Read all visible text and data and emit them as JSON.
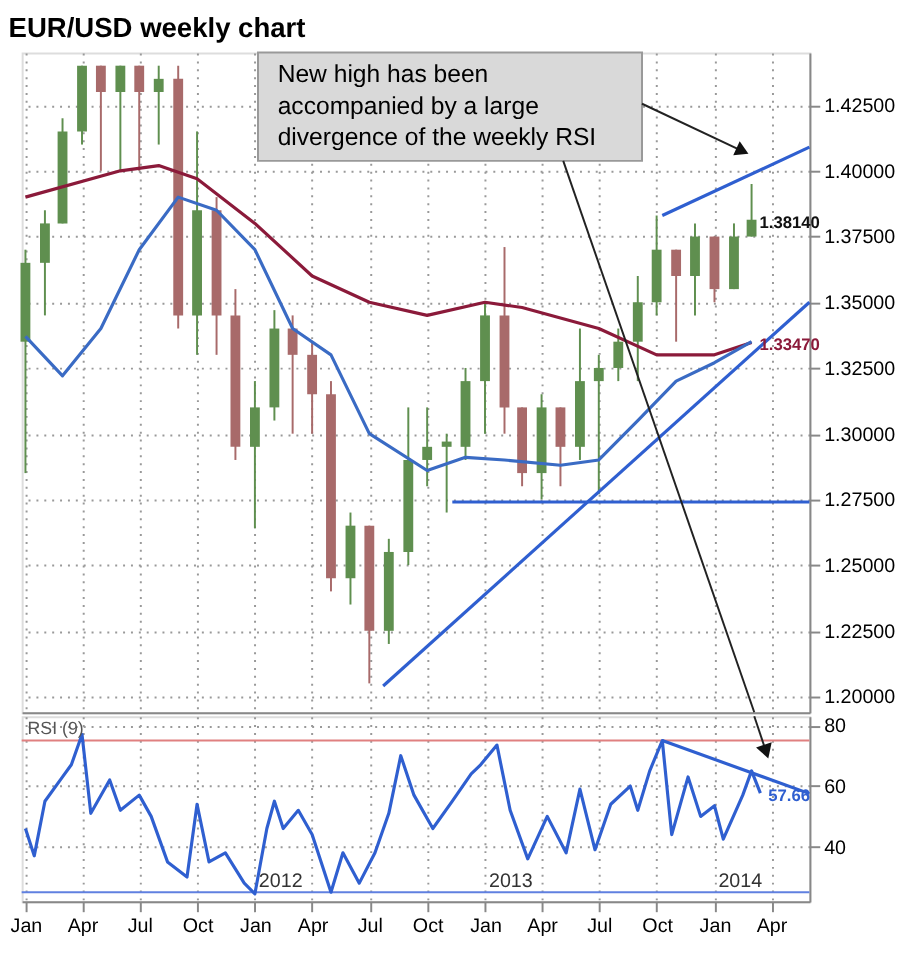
{
  "chart_data": [
    {
      "type": "candlestick",
      "title": "EUR/USD weekly chart",
      "x": [
        "2011-01",
        "2011-02",
        "2011-03",
        "2011-04",
        "2011-05",
        "2011-06",
        "2011-07",
        "2011-08",
        "2011-09",
        "2011-10",
        "2011-11",
        "2011-12",
        "2012-01",
        "2012-02",
        "2012-03",
        "2012-04",
        "2012-05",
        "2012-06",
        "2012-07",
        "2012-08",
        "2012-09",
        "2012-10",
        "2012-11",
        "2012-12",
        "2013-01",
        "2013-02",
        "2013-03",
        "2013-04",
        "2013-05",
        "2013-06",
        "2013-07",
        "2013-08",
        "2013-09",
        "2013-10",
        "2013-11",
        "2013-12",
        "2014-01",
        "2014-02",
        "2014-03"
      ],
      "ohlc": [
        [
          1.335,
          1.37,
          1.285,
          1.365
        ],
        [
          1.365,
          1.385,
          1.345,
          1.38
        ],
        [
          1.38,
          1.42,
          1.38,
          1.415
        ],
        [
          1.415,
          1.44,
          1.41,
          1.44
        ],
        [
          1.44,
          1.44,
          1.4,
          1.43
        ],
        [
          1.43,
          1.44,
          1.4,
          1.44
        ],
        [
          1.44,
          1.44,
          1.4,
          1.43
        ],
        [
          1.43,
          1.44,
          1.41,
          1.435
        ],
        [
          1.435,
          1.44,
          1.34,
          1.345
        ],
        [
          1.345,
          1.415,
          1.33,
          1.385
        ],
        [
          1.385,
          1.39,
          1.33,
          1.345
        ],
        [
          1.345,
          1.355,
          1.29,
          1.295
        ],
        [
          1.295,
          1.32,
          1.264,
          1.31
        ],
        [
          1.31,
          1.347,
          1.305,
          1.34
        ],
        [
          1.34,
          1.345,
          1.3,
          1.33
        ],
        [
          1.33,
          1.335,
          1.3,
          1.315
        ],
        [
          1.315,
          1.32,
          1.24,
          1.245
        ],
        [
          1.245,
          1.27,
          1.235,
          1.265
        ],
        [
          1.265,
          1.265,
          1.205,
          1.225
        ],
        [
          1.225,
          1.26,
          1.22,
          1.255
        ],
        [
          1.255,
          1.31,
          1.25,
          1.29
        ],
        [
          1.29,
          1.31,
          1.28,
          1.295
        ],
        [
          1.295,
          1.3,
          1.27,
          1.297
        ],
        [
          1.295,
          1.325,
          1.29,
          1.32
        ],
        [
          1.32,
          1.35,
          1.3,
          1.345
        ],
        [
          1.345,
          1.371,
          1.3,
          1.31
        ],
        [
          1.31,
          1.31,
          1.28,
          1.285
        ],
        [
          1.285,
          1.315,
          1.275,
          1.31
        ],
        [
          1.31,
          1.31,
          1.28,
          1.295
        ],
        [
          1.295,
          1.34,
          1.29,
          1.32
        ],
        [
          1.32,
          1.33,
          1.277,
          1.325
        ],
        [
          1.325,
          1.34,
          1.32,
          1.335
        ],
        [
          1.335,
          1.36,
          1.32,
          1.35
        ],
        [
          1.35,
          1.383,
          1.345,
          1.37
        ],
        [
          1.37,
          1.37,
          1.335,
          1.36
        ],
        [
          1.36,
          1.38,
          1.345,
          1.375
        ],
        [
          1.375,
          1.375,
          1.35,
          1.355
        ],
        [
          1.355,
          1.38,
          1.355,
          1.375
        ],
        [
          1.375,
          1.395,
          1.375,
          1.3814
        ]
      ],
      "colors": [
        "#5f8f4f",
        "#5f8f4f",
        "#5f8f4f",
        "#5f8f4f",
        "#a86a6a",
        "#5f8f4f",
        "#a86a6a",
        "#5f8f4f",
        "#a86a6a",
        "#5f8f4f",
        "#a86a6a",
        "#a86a6a",
        "#5f8f4f",
        "#5f8f4f",
        "#a86a6a",
        "#a86a6a",
        "#a86a6a",
        "#5f8f4f",
        "#a86a6a",
        "#5f8f4f",
        "#5f8f4f",
        "#5f8f4f",
        "#5f8f4f",
        "#5f8f4f",
        "#5f8f4f",
        "#a86a6a",
        "#a86a6a",
        "#5f8f4f",
        "#a86a6a",
        "#5f8f4f",
        "#5f8f4f",
        "#5f8f4f",
        "#5f8f4f",
        "#5f8f4f",
        "#a86a6a",
        "#5f8f4f",
        "#a86a6a",
        "#5f8f4f",
        "#5f8f4f"
      ],
      "series": [
        {
          "type": "line",
          "color": "#8b1a3a",
          "x": [
            "2011-01",
            "2011-06",
            "2011-08",
            "2011-10",
            "2012-01",
            "2012-04",
            "2012-07",
            "2012-10",
            "2013-01",
            "2013-03",
            "2013-07",
            "2013-10",
            "2014-01",
            "2014-03"
          ],
          "values": [
            1.39,
            1.4,
            1.402,
            1.397,
            1.38,
            1.36,
            1.35,
            1.345,
            1.35,
            1.348,
            1.34,
            1.33,
            1.33,
            1.3347
          ],
          "value_labels": [
            null,
            null,
            null,
            null,
            null,
            null,
            null,
            null,
            null,
            null,
            null,
            null,
            null,
            "1.33470"
          ]
        },
        {
          "type": "line",
          "color": "#3a6bc4",
          "x": [
            "2011-01",
            "2011-03",
            "2011-05",
            "2011-07",
            "2011-09",
            "2011-11",
            "2012-01",
            "2012-03",
            "2012-05",
            "2012-07",
            "2012-10",
            "2012-12",
            "2013-02",
            "2013-05",
            "2013-07",
            "2013-09",
            "2013-11",
            "2014-01",
            "2014-03"
          ],
          "values": [
            1.337,
            1.322,
            1.34,
            1.37,
            1.39,
            1.385,
            1.37,
            1.34,
            1.33,
            1.3,
            1.286,
            1.291,
            1.29,
            1.288,
            1.29,
            1.305,
            1.32,
            1.327,
            1.335
          ]
        },
        {
          "type": "line",
          "color": "#2f5fd0",
          "x": [
            "2012-07-23",
            "2014-06-01"
          ],
          "values": [
            1.204,
            1.35
          ]
        },
        {
          "type": "line",
          "color": "#2f5fd0",
          "x": [
            "2013-10-10",
            "2014-06-01"
          ],
          "values": [
            1.383,
            1.409
          ]
        },
        {
          "type": "line",
          "color": "#2f5fd0",
          "x": [
            "2012-11-10",
            "2014-06-01"
          ],
          "values": [
            1.274,
            1.274
          ]
        }
      ],
      "value_labels": [
        null,
        null,
        null,
        null,
        null,
        null,
        null,
        null,
        null,
        null,
        null,
        null,
        null,
        null,
        null,
        null,
        null,
        null,
        null,
        null,
        null,
        null,
        null,
        null,
        null,
        null,
        null,
        null,
        null,
        null,
        null,
        null,
        null,
        null,
        null,
        null,
        null,
        null,
        "1.38140"
      ],
      "annotations": [
        "New high has been accompanied by a large divergence of the weekly RSI"
      ],
      "xlim": [
        "2010-12-26",
        "2014-06-01"
      ],
      "ylim": [
        1.194,
        1.445
      ],
      "yticks": [
        {
          "value": 1.2,
          "label": "1.20000"
        },
        {
          "value": 1.225,
          "label": "1.22500"
        },
        {
          "value": 1.25,
          "label": "1.25000"
        },
        {
          "value": 1.275,
          "label": "1.27500"
        },
        {
          "value": 1.3,
          "label": "1.30000"
        },
        {
          "value": 1.325,
          "label": "1.32500"
        },
        {
          "value": 1.35,
          "label": "1.35000"
        },
        {
          "value": 1.375,
          "label": "1.37500"
        },
        {
          "value": 1.4,
          "label": "1.40000"
        },
        {
          "value": 1.425,
          "label": "1.42500"
        }
      ],
      "xticks": [
        {
          "value": "2011-01-01",
          "label": null
        },
        {
          "value": "2011-04-01",
          "label": null
        },
        {
          "value": "2011-07-01",
          "label": null
        },
        {
          "value": "2011-10-01",
          "label": null
        },
        {
          "value": "2012-01-01",
          "label": null
        },
        {
          "value": "2012-04-01",
          "label": null
        },
        {
          "value": "2012-07-01",
          "label": null
        },
        {
          "value": "2012-10-01",
          "label": null
        },
        {
          "value": "2013-01-01",
          "label": null
        },
        {
          "value": "2013-04-01",
          "label": null
        },
        {
          "value": "2013-07-01",
          "label": null
        },
        {
          "value": "2013-10-01",
          "label": null
        },
        {
          "value": "2014-01-01",
          "label": null
        },
        {
          "value": "2014-04-01",
          "label": null
        }
      ],
      "grid": true,
      "tick_labels": "y"
    },
    {
      "type": "line",
      "series": [
        {
          "name": "RSI (9)",
          "color": "#2f5fd0",
          "x": [
            "2011-01-01",
            "2011-01-15",
            "2011-02-01",
            "2011-03-01",
            "2011-03-15",
            "2011-04-01",
            "2011-04-15",
            "2011-05-15",
            "2011-06-01",
            "2011-07-01",
            "2011-07-20",
            "2011-08-15",
            "2011-09-15",
            "2011-10-01",
            "2011-10-20",
            "2011-11-15",
            "2011-12-15",
            "2012-01-01",
            "2012-01-20",
            "2012-02-01",
            "2012-02-15",
            "2012-03-10",
            "2012-04-01",
            "2012-05-01",
            "2012-05-20",
            "2012-06-15",
            "2012-07-10",
            "2012-08-01",
            "2012-08-20",
            "2012-09-10",
            "2012-10-10",
            "2012-11-10",
            "2012-12-10",
            "2012-12-25",
            "2013-01-20",
            "2013-02-10",
            "2013-03-10",
            "2013-04-10",
            "2013-05-10",
            "2013-06-01",
            "2013-06-25",
            "2013-07-20",
            "2013-08-20",
            "2013-09-01",
            "2013-09-20",
            "2013-10-10",
            "2013-10-25",
            "2013-11-20",
            "2013-12-10",
            "2014-01-01",
            "2014-01-15",
            "2014-02-15",
            "2014-03-01",
            "2014-03-15"
          ],
          "values": [
            46,
            37,
            55,
            63,
            67,
            77,
            51,
            62,
            52,
            57,
            50,
            35,
            30,
            54,
            35,
            38,
            28,
            24.5,
            46,
            55,
            46,
            52,
            44,
            25,
            38,
            28,
            38,
            51,
            70,
            57,
            46,
            55,
            64,
            67,
            73.5,
            52,
            36,
            50,
            38,
            59,
            39,
            54,
            60,
            52,
            65,
            75,
            44,
            63,
            50,
            53.5,
            42.5,
            57,
            65,
            57.66
          ],
          "value_labels": [
            null,
            null,
            null,
            null,
            null,
            null,
            null,
            null,
            null,
            null,
            null,
            null,
            null,
            null,
            null,
            null,
            null,
            null,
            null,
            null,
            null,
            null,
            null,
            null,
            null,
            null,
            null,
            null,
            null,
            null,
            null,
            null,
            null,
            null,
            null,
            null,
            null,
            null,
            null,
            null,
            null,
            null,
            null,
            null,
            null,
            null,
            null,
            null,
            null,
            null,
            null,
            null,
            null,
            "57.66"
          ]
        },
        {
          "type": "line",
          "color": "#2f5fd0",
          "x": [
            "2013-10-10",
            "2014-06-01"
          ],
          "values": [
            75,
            57.5
          ]
        }
      ],
      "ref_lines": [
        {
          "axis": "y",
          "value": 75,
          "color": "#e08080"
        },
        {
          "axis": "y",
          "value": 25,
          "color": "#6080e0"
        }
      ],
      "annotations": [
        {
          "text": "2012",
          "x": "2012-01-01",
          "y": 23
        },
        {
          "text": "2013",
          "x": "2013-01-01",
          "y": 23
        },
        {
          "text": "2014",
          "x": "2014-01-01",
          "y": 23
        }
      ],
      "xlim": [
        "2010-12-26",
        "2014-06-01"
      ],
      "xticks": [
        {
          "value": "2011-01-01",
          "label": "Jan"
        },
        {
          "value": "2011-04-01",
          "label": "Apr"
        },
        {
          "value": "2011-07-01",
          "label": "Jul"
        },
        {
          "value": "2011-10-01",
          "label": "Oct"
        },
        {
          "value": "2012-01-01",
          "label": "Jan"
        },
        {
          "value": "2012-04-01",
          "label": "Apr"
        },
        {
          "value": "2012-07-01",
          "label": "Jul"
        },
        {
          "value": "2012-10-01",
          "label": "Oct"
        },
        {
          "value": "2013-01-01",
          "label": "Jan"
        },
        {
          "value": "2013-04-01",
          "label": "Apr"
        },
        {
          "value": "2013-07-01",
          "label": "Jul"
        },
        {
          "value": "2013-10-01",
          "label": "Oct"
        },
        {
          "value": "2014-01-01",
          "label": "Jan"
        },
        {
          "value": "2014-04-01",
          "label": "Apr"
        }
      ],
      "ylim": [
        22,
        83
      ],
      "yticks": [
        40,
        60,
        80
      ],
      "grid": true
    }
  ]
}
